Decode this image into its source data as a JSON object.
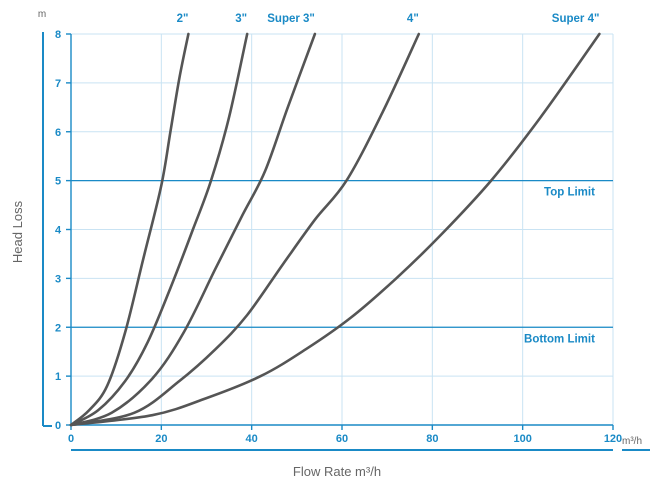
{
  "chart_data": {
    "type": "line",
    "xlabel": "Flow Rate m³/h",
    "ylabel": "Head Loss",
    "y_unit": "m",
    "x_unit": "m³/h",
    "xlim": [
      0,
      120
    ],
    "ylim": [
      0,
      8
    ],
    "x_ticks": [
      0,
      20,
      40,
      60,
      80,
      100,
      120
    ],
    "y_ticks": [
      0,
      1,
      2,
      3,
      4,
      5,
      6,
      7,
      8
    ],
    "grid": true,
    "colors": {
      "axis": "#1a8ac6",
      "grid": "#c9e3f3",
      "curve": "#555555"
    },
    "series": [
      {
        "name": "2\"",
        "points": [
          [
            0,
            0
          ],
          [
            4,
            0.3
          ],
          [
            8,
            0.8
          ],
          [
            12,
            1.9
          ],
          [
            16,
            3.4
          ],
          [
            20,
            4.9
          ],
          [
            22,
            6.0
          ],
          [
            24,
            7.1
          ],
          [
            26,
            8.0
          ]
        ]
      },
      {
        "name": "3\"",
        "points": [
          [
            0,
            0
          ],
          [
            6,
            0.3
          ],
          [
            12,
            0.9
          ],
          [
            17,
            1.7
          ],
          [
            22,
            2.8
          ],
          [
            27,
            4.0
          ],
          [
            31,
            5.0
          ],
          [
            35,
            6.3
          ],
          [
            39,
            8.0
          ]
        ]
      },
      {
        "name": "Super 3\"",
        "points": [
          [
            0,
            0
          ],
          [
            9,
            0.25
          ],
          [
            18,
            0.95
          ],
          [
            25,
            1.9
          ],
          [
            32,
            3.2
          ],
          [
            38,
            4.3
          ],
          [
            43,
            5.2
          ],
          [
            48,
            6.5
          ],
          [
            54,
            8.0
          ]
        ]
      },
      {
        "name": "4\"",
        "points": [
          [
            0,
            0
          ],
          [
            14,
            0.25
          ],
          [
            24,
            0.9
          ],
          [
            32,
            1.55
          ],
          [
            39,
            2.25
          ],
          [
            47,
            3.3
          ],
          [
            54,
            4.2
          ],
          [
            61,
            5.0
          ],
          [
            69,
            6.4
          ],
          [
            77,
            8.0
          ]
        ]
      },
      {
        "name": "Super 4\"",
        "points": [
          [
            0,
            0
          ],
          [
            18,
            0.2
          ],
          [
            30,
            0.55
          ],
          [
            42,
            1.0
          ],
          [
            52,
            1.55
          ],
          [
            62,
            2.2
          ],
          [
            72,
            3.0
          ],
          [
            82,
            3.9
          ],
          [
            93,
            5.0
          ],
          [
            104,
            6.3
          ],
          [
            117,
            8.0
          ]
        ]
      }
    ],
    "reference_lines": [
      {
        "label": "Top Limit",
        "y": 5
      },
      {
        "label": "Bottom Limit",
        "y": 2
      }
    ]
  }
}
